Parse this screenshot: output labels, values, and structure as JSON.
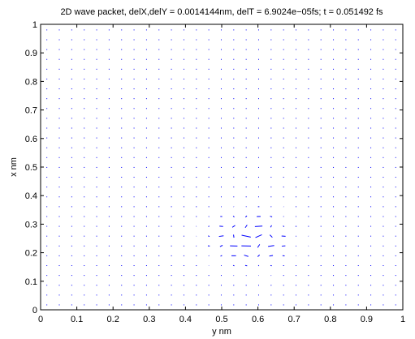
{
  "chart_data": {
    "type": "quiver",
    "title": "2D wave packet, delX,delY = 0.0014144nm, delT = 6.9024e−05fs; t = 0.051492 fs",
    "xlabel": "y nm",
    "ylabel": "x nm",
    "xlim": [
      0,
      1
    ],
    "ylim": [
      0,
      1
    ],
    "xticks": [
      0,
      0.1,
      0.2,
      0.3,
      0.4,
      0.5,
      0.6,
      0.7,
      0.8,
      0.9,
      1
    ],
    "yticks": [
      0,
      0.1,
      0.2,
      0.3,
      0.4,
      0.5,
      0.6,
      0.7,
      0.8,
      0.9,
      1
    ],
    "xtick_labels": [
      "0",
      "0.1",
      "0.2",
      "0.3",
      "0.4",
      "0.5",
      "0.6",
      "0.7",
      "0.8",
      "0.9",
      "1"
    ],
    "ytick_labels": [
      "0",
      "0.1",
      "0.2",
      "0.3",
      "0.4",
      "0.5",
      "0.6",
      "0.7",
      "0.8",
      "0.9",
      "1"
    ],
    "grid": false,
    "arrow_color": "#0000ff",
    "grid_spacing": 0.0344,
    "packet_center": [
      0.58,
      0.25
    ],
    "packet_sigma": [
      0.065,
      0.055
    ],
    "packet_wavenumber": 95,
    "packet_region": [
      0.4,
      0.77,
      0.06,
      0.42
    ],
    "max_arrow_length": 0.03
  }
}
